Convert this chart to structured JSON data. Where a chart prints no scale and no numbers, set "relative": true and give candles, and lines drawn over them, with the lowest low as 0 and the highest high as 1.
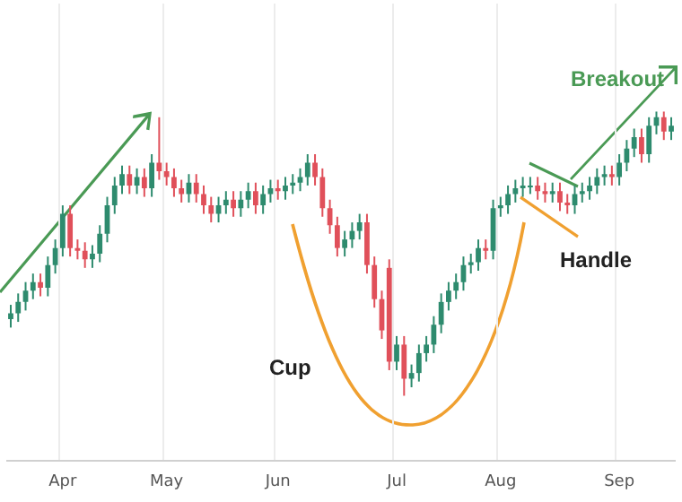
{
  "chart_data": {
    "type": "candlestick",
    "relative": true,
    "grid": "x",
    "categories": [
      null,
      null,
      null,
      null,
      null,
      null,
      null,
      "Apr",
      null,
      null,
      null,
      null,
      null,
      null,
      null,
      null,
      null,
      null,
      null,
      null,
      null,
      "May",
      null,
      null,
      null,
      null,
      null,
      null,
      null,
      null,
      null,
      null,
      null,
      null,
      null,
      null,
      "Jun",
      null,
      null,
      null,
      null,
      null,
      null,
      null,
      null,
      null,
      null,
      null,
      null,
      null,
      null,
      null,
      "Jul",
      null,
      null,
      null,
      null,
      null,
      null,
      null,
      null,
      null,
      null,
      null,
      null,
      null,
      "Aug",
      null,
      null,
      null,
      null,
      null,
      null,
      null,
      null,
      null,
      null,
      null,
      null,
      null,
      null,
      null,
      "Sep",
      null,
      null,
      null,
      null,
      null,
      null,
      null
    ],
    "ohlc": [
      [
        0.27,
        0.32,
        0.24,
        0.29
      ],
      [
        0.29,
        0.36,
        0.26,
        0.33
      ],
      [
        0.33,
        0.4,
        0.3,
        0.37
      ],
      [
        0.37,
        0.43,
        0.34,
        0.4
      ],
      [
        0.4,
        0.43,
        0.35,
        0.38
      ],
      [
        0.38,
        0.49,
        0.35,
        0.46
      ],
      [
        0.46,
        0.55,
        0.43,
        0.52
      ],
      [
        0.52,
        0.67,
        0.49,
        0.64
      ],
      [
        0.64,
        0.67,
        0.49,
        0.52
      ],
      [
        0.52,
        0.55,
        0.48,
        0.51
      ],
      [
        0.51,
        0.54,
        0.45,
        0.48
      ],
      [
        0.48,
        0.53,
        0.45,
        0.5
      ],
      [
        0.5,
        0.6,
        0.47,
        0.57
      ],
      [
        0.57,
        0.7,
        0.54,
        0.67
      ],
      [
        0.67,
        0.77,
        0.64,
        0.74
      ],
      [
        0.74,
        0.81,
        0.71,
        0.78
      ],
      [
        0.78,
        0.81,
        0.71,
        0.74
      ],
      [
        0.74,
        0.8,
        0.71,
        0.77
      ],
      [
        0.77,
        0.8,
        0.7,
        0.73
      ],
      [
        0.73,
        0.85,
        0.7,
        0.82
      ],
      [
        0.82,
        0.98,
        0.76,
        0.79
      ],
      [
        0.79,
        0.82,
        0.74,
        0.77
      ],
      [
        0.77,
        0.8,
        0.7,
        0.73
      ],
      [
        0.73,
        0.76,
        0.68,
        0.71
      ],
      [
        0.71,
        0.78,
        0.68,
        0.75
      ],
      [
        0.75,
        0.78,
        0.68,
        0.71
      ],
      [
        0.71,
        0.74,
        0.64,
        0.67
      ],
      [
        0.67,
        0.7,
        0.61,
        0.64
      ],
      [
        0.64,
        0.7,
        0.61,
        0.67
      ],
      [
        0.67,
        0.72,
        0.64,
        0.69
      ],
      [
        0.69,
        0.72,
        0.63,
        0.66
      ],
      [
        0.66,
        0.72,
        0.63,
        0.69
      ],
      [
        0.69,
        0.75,
        0.66,
        0.72
      ],
      [
        0.72,
        0.75,
        0.64,
        0.67
      ],
      [
        0.67,
        0.74,
        0.64,
        0.71
      ],
      [
        0.71,
        0.76,
        0.68,
        0.73
      ],
      [
        0.73,
        0.76,
        0.69,
        0.72
      ],
      [
        0.72,
        0.77,
        0.69,
        0.74
      ],
      [
        0.74,
        0.78,
        0.71,
        0.75
      ],
      [
        0.75,
        0.8,
        0.72,
        0.77
      ],
      [
        0.77,
        0.85,
        0.74,
        0.82
      ],
      [
        0.82,
        0.85,
        0.74,
        0.77
      ],
      [
        0.77,
        0.8,
        0.63,
        0.66
      ],
      [
        0.66,
        0.69,
        0.57,
        0.6
      ],
      [
        0.6,
        0.63,
        0.49,
        0.52
      ],
      [
        0.52,
        0.58,
        0.49,
        0.55
      ],
      [
        0.55,
        0.61,
        0.52,
        0.58
      ],
      [
        0.58,
        0.64,
        0.55,
        0.61
      ],
      [
        0.61,
        0.64,
        0.43,
        0.46
      ],
      [
        0.46,
        0.49,
        0.31,
        0.34
      ],
      [
        0.34,
        0.37,
        0.2,
        0.23
      ],
      [
        0.45,
        0.48,
        0.09,
        0.12
      ],
      [
        0.12,
        0.21,
        0.09,
        0.18
      ],
      [
        0.18,
        0.21,
        0.0,
        0.06
      ],
      [
        0.06,
        0.11,
        0.03,
        0.08
      ],
      [
        0.08,
        0.18,
        0.05,
        0.15
      ],
      [
        0.15,
        0.21,
        0.12,
        0.18
      ],
      [
        0.18,
        0.28,
        0.15,
        0.25
      ],
      [
        0.25,
        0.36,
        0.22,
        0.33
      ],
      [
        0.33,
        0.4,
        0.3,
        0.37
      ],
      [
        0.37,
        0.43,
        0.34,
        0.4
      ],
      [
        0.4,
        0.49,
        0.37,
        0.46
      ],
      [
        0.46,
        0.5,
        0.43,
        0.47
      ],
      [
        0.47,
        0.55,
        0.44,
        0.52
      ],
      [
        0.52,
        0.55,
        0.48,
        0.51
      ],
      [
        0.51,
        0.69,
        0.48,
        0.66
      ],
      [
        0.66,
        0.7,
        0.63,
        0.67
      ],
      [
        0.67,
        0.74,
        0.64,
        0.71
      ],
      [
        0.71,
        0.76,
        0.68,
        0.73
      ],
      [
        0.73,
        0.77,
        0.7,
        0.74
      ],
      [
        0.74,
        0.77,
        0.71,
        0.74
      ],
      [
        0.74,
        0.77,
        0.69,
        0.72
      ],
      [
        0.72,
        0.75,
        0.68,
        0.71
      ],
      [
        0.71,
        0.75,
        0.68,
        0.72
      ],
      [
        0.72,
        0.75,
        0.65,
        0.68
      ],
      [
        0.68,
        0.71,
        0.64,
        0.67
      ],
      [
        0.67,
        0.74,
        0.64,
        0.71
      ],
      [
        0.71,
        0.75,
        0.68,
        0.72
      ],
      [
        0.72,
        0.77,
        0.69,
        0.74
      ],
      [
        0.74,
        0.8,
        0.71,
        0.77
      ],
      [
        0.77,
        0.81,
        0.74,
        0.78
      ],
      [
        0.78,
        0.81,
        0.74,
        0.77
      ],
      [
        0.77,
        0.85,
        0.74,
        0.82
      ],
      [
        0.82,
        0.9,
        0.79,
        0.87
      ],
      [
        0.87,
        0.94,
        0.84,
        0.91
      ],
      [
        0.91,
        0.94,
        0.82,
        0.85
      ],
      [
        0.85,
        0.98,
        0.82,
        0.95
      ],
      [
        0.95,
        1.0,
        0.92,
        0.98
      ],
      [
        0.98,
        1.0,
        0.9,
        0.93
      ],
      [
        0.93,
        0.98,
        0.9,
        0.95
      ]
    ],
    "colors": [
      "#2e8b6e",
      "#2e8b6e",
      "#2e8b6e",
      "#2e8b6e",
      "#e0505a",
      "#2e8b6e",
      "#2e8b6e",
      "#2e8b6e",
      "#e0505a",
      "#e0505a",
      "#e0505a",
      "#2e8b6e",
      "#2e8b6e",
      "#2e8b6e",
      "#2e8b6e",
      "#2e8b6e",
      "#e0505a",
      "#2e8b6e",
      "#e0505a",
      "#2e8b6e",
      "#e0505a",
      "#e0505a",
      "#e0505a",
      "#e0505a",
      "#2e8b6e",
      "#e0505a",
      "#e0505a",
      "#e0505a",
      "#2e8b6e",
      "#2e8b6e",
      "#e0505a",
      "#2e8b6e",
      "#2e8b6e",
      "#e0505a",
      "#2e8b6e",
      "#2e8b6e",
      "#e0505a",
      "#2e8b6e",
      "#2e8b6e",
      "#2e8b6e",
      "#2e8b6e",
      "#e0505a",
      "#e0505a",
      "#e0505a",
      "#e0505a",
      "#2e8b6e",
      "#2e8b6e",
      "#2e8b6e",
      "#e0505a",
      "#e0505a",
      "#e0505a",
      "#e0505a",
      "#2e8b6e",
      "#e0505a",
      "#2e8b6e",
      "#2e8b6e",
      "#2e8b6e",
      "#2e8b6e",
      "#2e8b6e",
      "#2e8b6e",
      "#2e8b6e",
      "#2e8b6e",
      "#2e8b6e",
      "#2e8b6e",
      "#e0505a",
      "#2e8b6e",
      "#2e8b6e",
      "#2e8b6e",
      "#2e8b6e",
      "#2e8b6e",
      "#2e8b6e",
      "#e0505a",
      "#e0505a",
      "#2e8b6e",
      "#e0505a",
      "#e0505a",
      "#2e8b6e",
      "#2e8b6e",
      "#2e8b6e",
      "#2e8b6e",
      "#2e8b6e",
      "#e0505a",
      "#2e8b6e",
      "#2e8b6e",
      "#2e8b6e",
      "#e0505a",
      "#2e8b6e",
      "#2e8b6e",
      "#e0505a",
      "#2e8b6e"
    ],
    "annotations": [
      "Cup",
      "Handle",
      "Breakout"
    ]
  }
}
